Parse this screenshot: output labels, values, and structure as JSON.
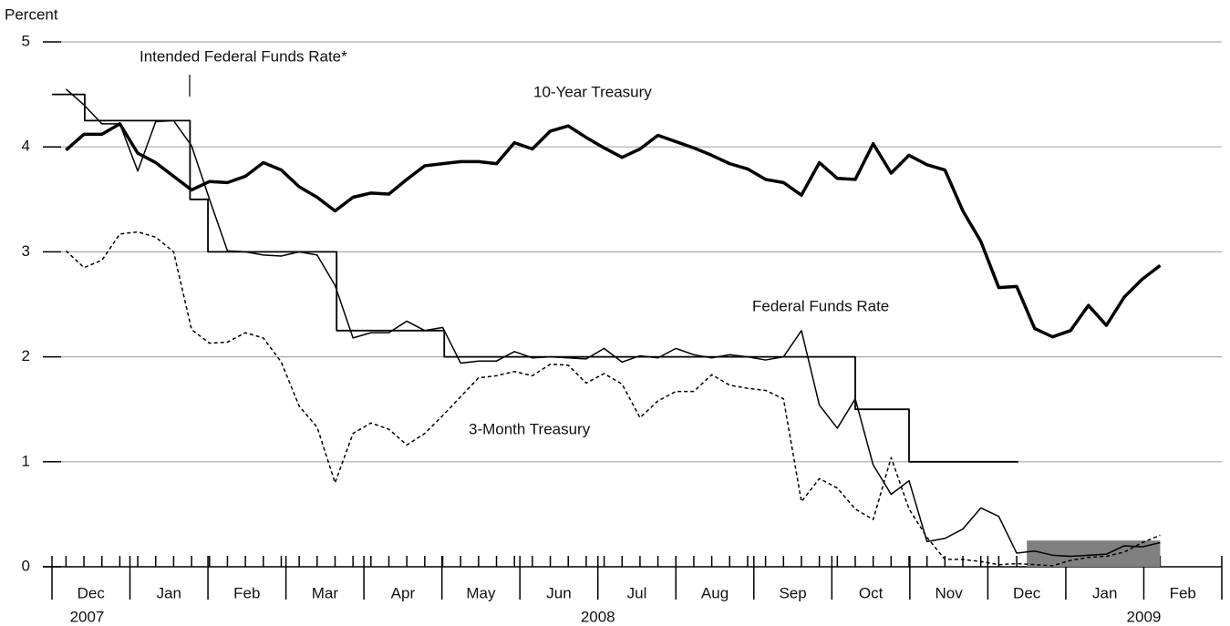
{
  "chart_data": {
    "type": "line",
    "y_label": "Percent",
    "ylim": [
      0,
      5
    ],
    "yticks": [
      0,
      1,
      2,
      3,
      4,
      5
    ],
    "grid": true,
    "xlim": [
      0,
      15
    ],
    "xticks": [
      {
        "value": 0.5,
        "label": "Dec"
      },
      {
        "value": 1.5,
        "label": "Jan"
      },
      {
        "value": 2.5,
        "label": "Feb"
      },
      {
        "value": 3.5,
        "label": "Mar"
      },
      {
        "value": 4.5,
        "label": "Apr"
      },
      {
        "value": 5.5,
        "label": "May"
      },
      {
        "value": 6.5,
        "label": "Jun"
      },
      {
        "value": 7.5,
        "label": "Jul"
      },
      {
        "value": 8.5,
        "label": "Aug"
      },
      {
        "value": 9.5,
        "label": "Sep"
      },
      {
        "value": 10.5,
        "label": "Oct"
      },
      {
        "value": 11.5,
        "label": "Nov"
      },
      {
        "value": 12.5,
        "label": "Dec"
      },
      {
        "value": 13.5,
        "label": "Jan"
      },
      {
        "value": 14.5,
        "label": "Feb"
      }
    ],
    "year_labels": [
      {
        "x": 0.45,
        "label": "2007"
      },
      {
        "x": 7.0,
        "label": "2008"
      },
      {
        "x": 14.0,
        "label": "2009"
      }
    ],
    "x": [
      0.18,
      0.41,
      0.64,
      0.87,
      1.1,
      1.33,
      1.56,
      1.79,
      2.02,
      2.25,
      2.48,
      2.71,
      2.94,
      3.17,
      3.4,
      3.63,
      3.86,
      4.09,
      4.32,
      4.55,
      4.78,
      5.01,
      5.24,
      5.47,
      5.7,
      5.93,
      6.16,
      6.39,
      6.62,
      6.85,
      7.08,
      7.31,
      7.54,
      7.77,
      8.0,
      8.23,
      8.46,
      8.69,
      8.92,
      9.15,
      9.38,
      9.61,
      9.84,
      10.07,
      10.3,
      10.53,
      10.76,
      10.99,
      11.22,
      11.45,
      11.68,
      11.91,
      12.14,
      12.37,
      12.6,
      12.83,
      13.06,
      13.29,
      13.52,
      13.75,
      13.98,
      14.21
    ],
    "series": [
      {
        "name": "10-Year Treasury",
        "color": "#000000",
        "values": [
          3.97,
          4.12,
          4.12,
          4.22,
          3.94,
          3.85,
          3.72,
          3.59,
          3.67,
          3.66,
          3.72,
          3.85,
          3.78,
          3.62,
          3.52,
          3.39,
          3.52,
          3.56,
          3.55,
          3.69,
          3.82,
          3.84,
          3.86,
          3.86,
          3.84,
          4.04,
          3.98,
          4.15,
          4.2,
          4.09,
          3.99,
          3.9,
          3.98,
          4.11,
          4.05,
          3.99,
          3.92,
          3.84,
          3.79,
          3.69,
          3.66,
          3.54,
          3.85,
          3.7,
          3.69,
          4.03,
          3.75,
          3.92,
          3.83,
          3.78,
          3.39,
          3.1,
          2.66,
          2.67,
          2.27,
          2.19,
          2.25,
          2.49,
          2.3,
          2.57,
          2.74,
          2.87
        ]
      },
      {
        "name": "Federal Funds Rate",
        "color": "#000000",
        "values": [
          4.55,
          4.4,
          4.22,
          4.22,
          3.77,
          4.24,
          4.25,
          4.01,
          3.5,
          3.01,
          3.0,
          2.97,
          2.96,
          3.0,
          2.97,
          2.68,
          2.18,
          2.23,
          2.23,
          2.34,
          2.25,
          2.28,
          1.94,
          1.96,
          1.96,
          2.05,
          1.99,
          2.0,
          1.99,
          1.98,
          2.08,
          1.95,
          2.01,
          1.99,
          2.08,
          2.02,
          1.99,
          2.02,
          2.0,
          1.97,
          2.0,
          2.25,
          1.54,
          1.32,
          1.6,
          0.97,
          0.69,
          0.82,
          0.24,
          0.27,
          0.36,
          0.56,
          0.48,
          0.13,
          0.15,
          0.11,
          0.1,
          0.11,
          0.12,
          0.2,
          0.19,
          0.23
        ]
      },
      {
        "name": "3-Month Treasury",
        "color": "#000000",
        "dashed": true,
        "values": [
          3.01,
          2.85,
          2.92,
          3.17,
          3.19,
          3.14,
          3.0,
          2.26,
          2.13,
          2.14,
          2.23,
          2.18,
          1.95,
          1.53,
          1.33,
          0.8,
          1.27,
          1.37,
          1.31,
          1.16,
          1.27,
          1.44,
          1.62,
          1.8,
          1.82,
          1.86,
          1.82,
          1.93,
          1.92,
          1.75,
          1.84,
          1.74,
          1.42,
          1.58,
          1.67,
          1.67,
          1.83,
          1.73,
          1.7,
          1.68,
          1.6,
          0.62,
          0.84,
          0.75,
          0.55,
          0.45,
          1.04,
          0.55,
          0.28,
          0.07,
          0.07,
          0.05,
          0.02,
          0.03,
          0.02,
          0.01,
          0.06,
          0.09,
          0.1,
          0.14,
          0.23,
          0.3
        ]
      },
      {
        "name": "Intended Federal Funds Rate*",
        "color": "#000000",
        "step": true,
        "x": [
          0,
          0.42,
          1.77,
          2.0,
          3.65,
          5.03,
          10.3,
          10.99,
          12.39
        ],
        "values": [
          4.5,
          4.25,
          3.5,
          3.0,
          2.25,
          2.0,
          1.5,
          1.0,
          1.0
        ]
      }
    ],
    "target_range": {
      "xlim": [
        12.5,
        14.21
      ],
      "ylim": [
        0,
        0.25
      ],
      "color": "#808080"
    }
  }
}
